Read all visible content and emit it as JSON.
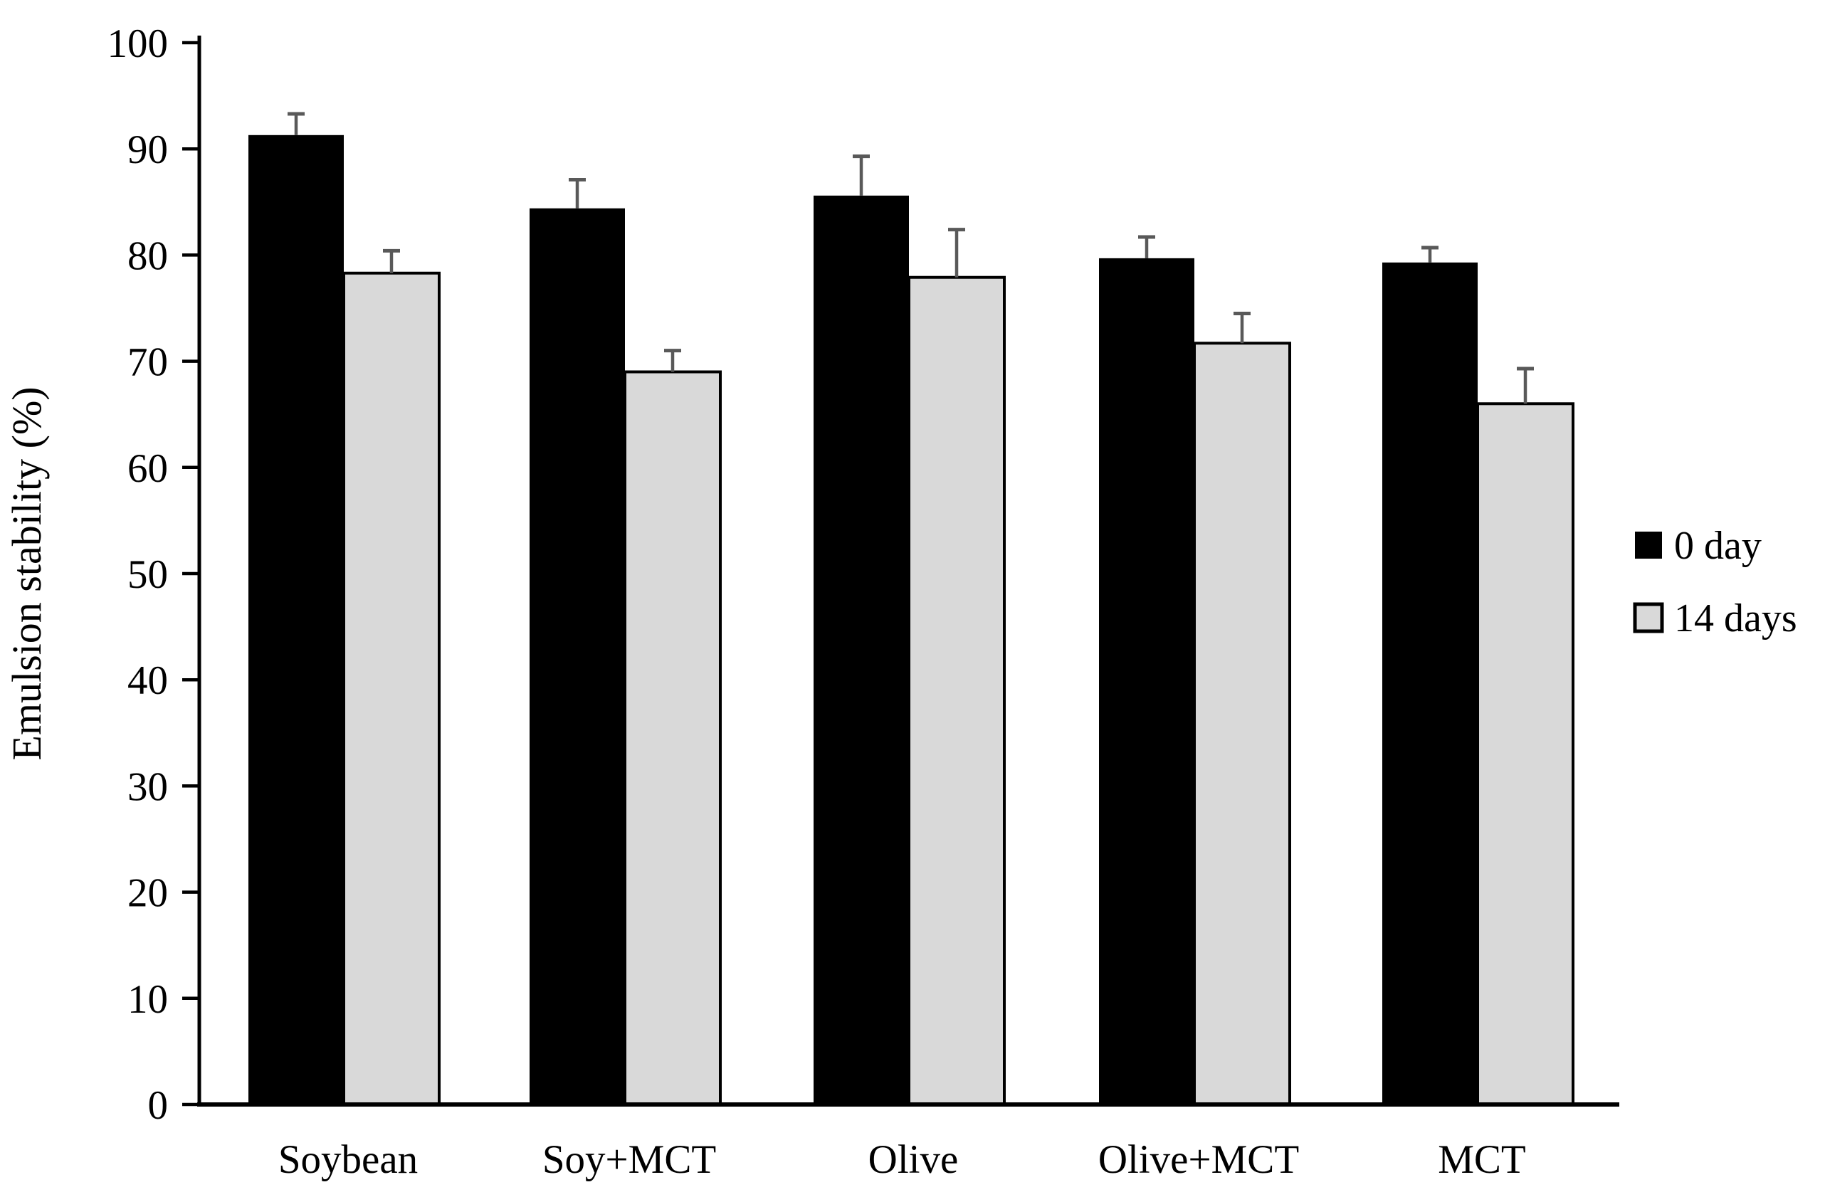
{
  "figure": {
    "background": "#ffffff",
    "text_color": "#000000"
  },
  "chart_data": {
    "type": "bar",
    "title": "",
    "xlabel": "",
    "ylabel": "Emulsion stability (%)",
    "ylim": [
      0,
      100
    ],
    "yticks": [
      0,
      10,
      20,
      30,
      40,
      50,
      60,
      70,
      80,
      90,
      100
    ],
    "grid": false,
    "legend_position": "right",
    "categories": [
      "Soybean",
      "Soy+MCT",
      "Olive",
      "Olive+MCT",
      "MCT"
    ],
    "series": [
      {
        "name": "0 day",
        "color": "#000000",
        "border": "#000000",
        "values": [
          91.3,
          84.4,
          85.6,
          79.7,
          79.3
        ],
        "errors_plus": [
          2.0,
          2.7,
          3.7,
          2.0,
          1.4
        ]
      },
      {
        "name": "14 days",
        "color": "#d9d9d9",
        "border": "#000000",
        "values": [
          78.3,
          69.0,
          77.9,
          71.7,
          66.0
        ],
        "errors_plus": [
          2.1,
          2.0,
          4.5,
          2.8,
          3.3
        ]
      }
    ],
    "error_bar_color": "#595959",
    "axis_color": "#000000"
  }
}
